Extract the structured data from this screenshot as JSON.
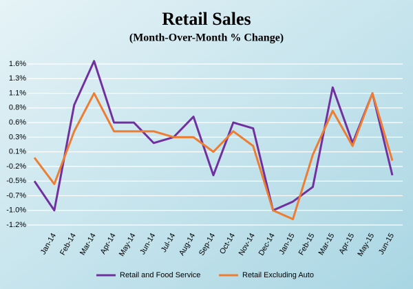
{
  "chart_data": {
    "type": "line",
    "title": "Retail Sales",
    "subtitle": "(Month-Over-Month % Change)",
    "categories": [
      null,
      "Jan-14",
      "Feb-14",
      "Mar-14",
      "Apr-14",
      "May-14",
      "Jun-14",
      "Jul-14",
      "Aug-14",
      "Sep-14",
      "Oct-14",
      "Nov-14",
      "Dec-14",
      "Jan-15",
      "Feb-15",
      "Mar-15",
      "Apr-15",
      "May-15",
      "Jun-15"
    ],
    "series": [
      {
        "name": "Retail and Food Service",
        "color": "#7030a0",
        "values": [
          -0.45,
          -0.95,
          0.85,
          1.6,
          0.55,
          0.55,
          0.2,
          0.3,
          0.65,
          -0.35,
          0.55,
          0.45,
          -0.95,
          -0.8,
          -0.55,
          1.15,
          0.2,
          1.05,
          -0.35
        ]
      },
      {
        "name": "Retail Excluding Auto",
        "color": "#ed7d31",
        "values": [
          -0.05,
          -0.5,
          0.4,
          1.05,
          0.4,
          0.4,
          0.4,
          0.3,
          0.3,
          0.05,
          0.4,
          0.15,
          -0.95,
          -1.1,
          0.0,
          0.75,
          0.15,
          1.05,
          -0.1
        ]
      }
    ],
    "ylim": [
      -1.2,
      1.55
    ],
    "yticks": [
      {
        "value": 1.55,
        "label": "1.6%"
      },
      {
        "value": 1.3,
        "label": "1.3%"
      },
      {
        "value": 1.05,
        "label": "1.1%"
      },
      {
        "value": 0.8,
        "label": "0.8%"
      },
      {
        "value": 0.55,
        "label": "0.6%"
      },
      {
        "value": 0.3,
        "label": "0.3%"
      },
      {
        "value": 0.05,
        "label": "0.1%"
      },
      {
        "value": -0.2,
        "label": "-0.2%"
      },
      {
        "value": -0.45,
        "label": "-0.5%"
      },
      {
        "value": -0.7,
        "label": "-0.7%"
      },
      {
        "value": -0.95,
        "label": "-1.0%"
      },
      {
        "value": -1.2,
        "label": "-1.2%"
      }
    ],
    "grid": true,
    "legend": "bottom"
  }
}
